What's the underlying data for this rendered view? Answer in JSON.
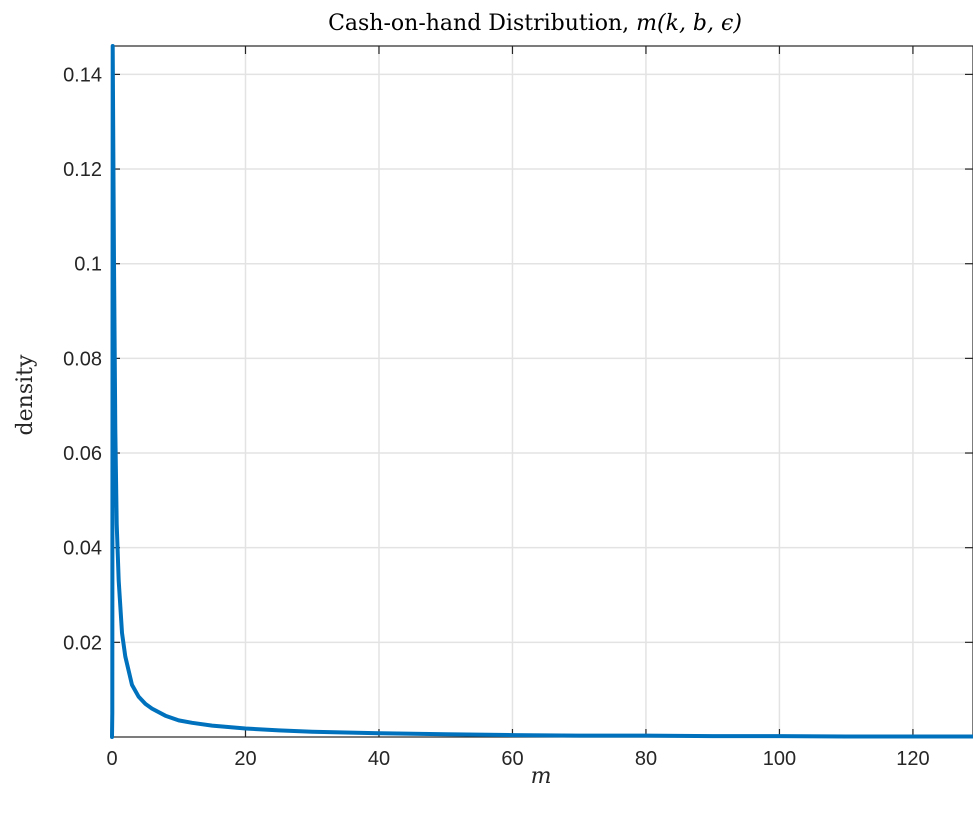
{
  "chart_data": {
    "type": "line",
    "title": "Cash-on-hand Distribution, ",
    "title_math": "m(k, b, ϵ)",
    "xlabel": "m",
    "ylabel": "density",
    "xlim": [
      0,
      129
    ],
    "ylim": [
      0,
      0.146
    ],
    "grid": true,
    "xticks": [
      0,
      20,
      40,
      60,
      80,
      100,
      120
    ],
    "xtick_labels": [
      "0",
      "20",
      "40",
      "60",
      "80",
      "100",
      "120"
    ],
    "yticks": [
      0.02,
      0.04,
      0.06,
      0.08,
      0.1,
      0.12,
      0.14
    ],
    "ytick_labels": [
      "0.02",
      "0.04",
      "0.06",
      "0.08",
      "0.1",
      "0.12",
      "0.14"
    ],
    "series": [
      {
        "color": "#0072BD",
        "x": [
          0,
          0.05,
          0.1,
          0.3,
          0.5,
          0.7,
          1,
          1.5,
          2,
          3,
          4,
          5,
          6,
          8,
          10,
          12,
          15,
          20,
          25,
          30,
          40,
          50,
          60,
          70,
          80,
          90,
          100,
          110,
          120,
          129
        ],
        "y": [
          0.0,
          0.005,
          0.146,
          0.1,
          0.065,
          0.045,
          0.033,
          0.022,
          0.017,
          0.011,
          0.0085,
          0.007,
          0.006,
          0.0045,
          0.0035,
          0.003,
          0.0024,
          0.0018,
          0.0014,
          0.0011,
          0.0008,
          0.0006,
          0.0004,
          0.0003,
          0.0003,
          0.0002,
          0.0002,
          0.0001,
          0.0001,
          0.0001
        ]
      }
    ]
  }
}
